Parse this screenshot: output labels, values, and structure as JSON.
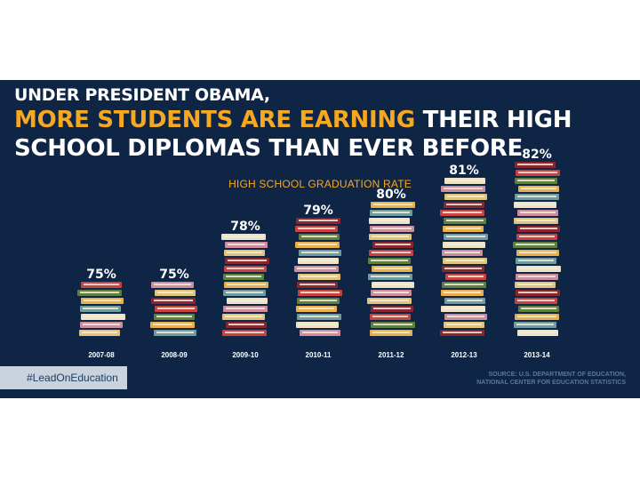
{
  "headline": {
    "line1": "UNDER PRESIDENT OBAMA,",
    "line2_accent": "MORE STUDENTS ARE EARNING",
    "line2_rest": " THEIR HIGH",
    "line3": "SCHOOL DIPLOMAS THAN EVER BEFORE"
  },
  "hashtag": "#LeadOnEducation",
  "source": {
    "line1": "SOURCE: U.S. DEPARTMENT OF EDUCATION,",
    "line2": "NATIONAL CENTER FOR EDUCATION STATISTICS"
  },
  "colors": {
    "background": "#0f2546",
    "accent": "#f6a821",
    "book_palette": [
      "#e0c47a",
      "#6f9ca0",
      "#c8423f",
      "#cd8ca0",
      "#e9b04a",
      "#8b2631",
      "#efe3c5",
      "#5f7f3e"
    ]
  },
  "chart_data": {
    "type": "bar",
    "title": "HIGH SCHOOL GRADUATION RATE",
    "categories": [
      "2007-08",
      "2008-09",
      "2009-10",
      "2010-11",
      "2011-12",
      "2012-13",
      "2013-14"
    ],
    "values": [
      75,
      75,
      78,
      79,
      80,
      81,
      82
    ],
    "value_labels": [
      "75%",
      "75%",
      "78%",
      "79%",
      "80%",
      "81%",
      "82%"
    ],
    "xlabel": "",
    "ylabel": "",
    "grid": false,
    "mark": "stacked books"
  }
}
